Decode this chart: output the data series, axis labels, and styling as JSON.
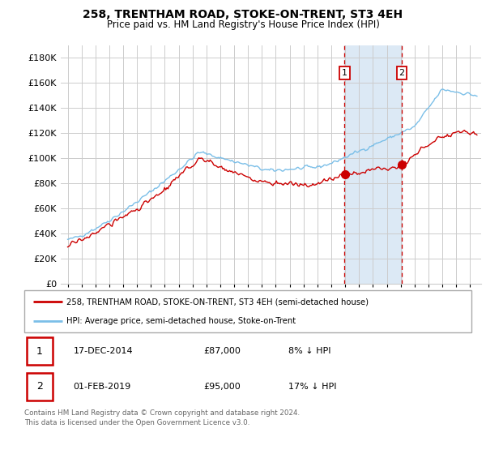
{
  "title": "258, TRENTHAM ROAD, STOKE-ON-TRENT, ST3 4EH",
  "subtitle": "Price paid vs. HM Land Registry's House Price Index (HPI)",
  "legend_line1": "258, TRENTHAM ROAD, STOKE-ON-TRENT, ST3 4EH (semi-detached house)",
  "legend_line2": "HPI: Average price, semi-detached house, Stoke-on-Trent",
  "footnote": "Contains HM Land Registry data © Crown copyright and database right 2024.\nThis data is licensed under the Open Government Licence v3.0.",
  "transaction1_date": "17-DEC-2014",
  "transaction1_price": "£87,000",
  "transaction1_hpi": "8% ↓ HPI",
  "transaction1_year": 2014.96,
  "transaction2_date": "01-FEB-2019",
  "transaction2_price": "£95,000",
  "transaction2_hpi": "17% ↓ HPI",
  "transaction2_year": 2019.08,
  "shade_start": 2014.96,
  "shade_end": 2019.08,
  "ylim_min": 0,
  "ylim_max": 190000,
  "xlim_min": 1994.5,
  "xlim_max": 2024.8,
  "hpi_color": "#7bbfe8",
  "price_color": "#cc0000",
  "shade_color": "#dce9f5",
  "grid_color": "#cccccc",
  "background_color": "#ffffff",
  "transaction1_price_val": 87000,
  "transaction2_price_val": 95000
}
